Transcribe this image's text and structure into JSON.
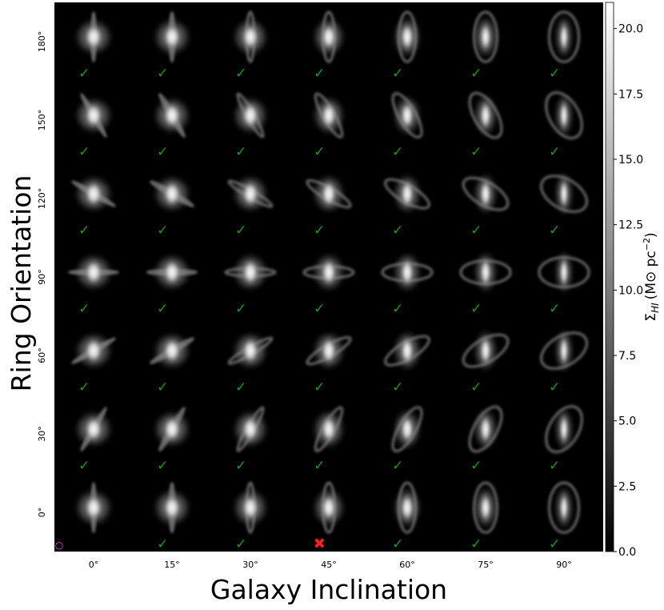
{
  "chart_data": {
    "type": "heatmap",
    "title": "",
    "xlabel": "Galaxy Inclination",
    "ylabel": "Ring Orientation",
    "x_ticks": [
      "0°",
      "15°",
      "30°",
      "45°",
      "60°",
      "75°",
      "90°"
    ],
    "y_ticks": [
      "180°",
      "150°",
      "120°",
      "90°",
      "60°",
      "30°",
      "0°"
    ],
    "galaxy_inclinations": [
      0,
      15,
      30,
      45,
      60,
      75,
      90
    ],
    "ring_orientations": [
      180,
      150,
      120,
      90,
      60,
      30,
      0
    ],
    "colorbar": {
      "label": "Σ_HI (M⊙ pc⁻²)",
      "label_main": "Σ",
      "label_sub": "HI",
      "label_unit": "(M⊙ pc",
      "label_exp": "−2",
      "label_close": ")",
      "range": [
        0.0,
        21.0
      ],
      "ticks": [
        "0.0",
        "2.5",
        "5.0",
        "7.5",
        "10.0",
        "12.5",
        "15.0",
        "17.5",
        "20.0"
      ],
      "tick_values": [
        0,
        2.5,
        5,
        7.5,
        10,
        12.5,
        15,
        17.5,
        20
      ],
      "colormap": "gray"
    },
    "status_grid": [
      [
        "check",
        "check",
        "check",
        "check",
        "check",
        "check",
        "check"
      ],
      [
        "check",
        "check",
        "check",
        "check",
        "check",
        "check",
        "check"
      ],
      [
        "check",
        "check",
        "check",
        "check",
        "check",
        "check",
        "check"
      ],
      [
        "check",
        "check",
        "check",
        "check",
        "check",
        "check",
        "check"
      ],
      [
        "check",
        "check",
        "check",
        "check",
        "check",
        "check",
        "check"
      ],
      [
        "check",
        "check",
        "check",
        "check",
        "check",
        "check",
        "check"
      ],
      [
        "circle",
        "check",
        "check",
        "cross",
        "check",
        "check",
        "check"
      ]
    ],
    "markers": {
      "check": {
        "symbol": "✓",
        "color": "#1a9a1a",
        "icon": "check-icon"
      },
      "cross": {
        "symbol": "✖",
        "color": "#ff2020",
        "icon": "cross-icon"
      },
      "circle": {
        "symbol": "○",
        "color": "#e040e0",
        "icon": "circle-icon"
      }
    },
    "background_color": "#000000"
  }
}
